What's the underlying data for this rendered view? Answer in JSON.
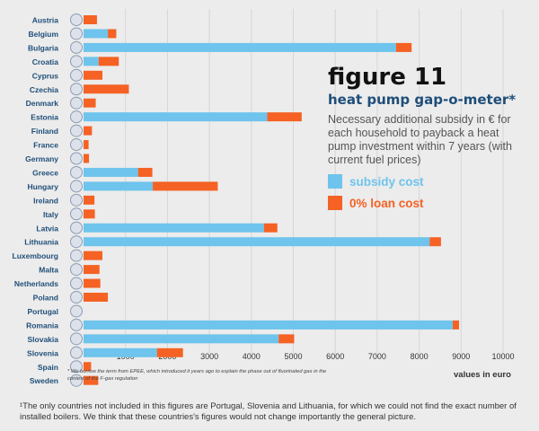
{
  "title": "figure 11",
  "subtitle": "heat pump gap-o-meter*",
  "description": "Necessary additional subsidy in € for each household to payback a heat pump investment within 7 years (with current fuel prices)",
  "legend": [
    {
      "label": "subsidy cost",
      "color": "#6ec4ec"
    },
    {
      "label": "0% loan cost",
      "color": "#f56224"
    }
  ],
  "footnote_small": "* We borrow the term from EPEE, which introduced it years ago to explain the phase out of fluorinated gas in the context of the F-gas regulation",
  "bottom_note": "¹The only countries not included in this figures are Portugal, Slovenia and Lithuania, for which we could not find the exact number of installed boilers. We think that these countries's figures would not change importantly the general picture.",
  "chart_data": {
    "type": "bar",
    "orientation": "horizontal",
    "stacked": true,
    "xlabel": "values in euro",
    "xlim": [
      0,
      10000
    ],
    "xticks": [
      1000,
      2000,
      3000,
      4000,
      5000,
      6000,
      7000,
      8000,
      9000,
      10000
    ],
    "categories": [
      "Austria",
      "Belgium",
      "Bulgaria",
      "Croatia",
      "Cyprus",
      "Czechia",
      "Denmark",
      "Estonia",
      "Finland",
      "France",
      "Germany",
      "Greece",
      "Hungary",
      "Ireland",
      "Italy",
      "Latvia",
      "Lithuania",
      "Luxembourg",
      "Malta",
      "Netherlands",
      "Poland",
      "Portugal",
      "Romania",
      "Slovakia",
      "Slovenia",
      "Spain",
      "Sweden"
    ],
    "series": [
      {
        "name": "subsidy cost",
        "color": "#6ec4ec",
        "values": [
          0,
          580,
          7450,
          360,
          0,
          0,
          0,
          4380,
          0,
          0,
          0,
          1300,
          1650,
          0,
          0,
          4300,
          8250,
          0,
          0,
          0,
          0,
          0,
          8800,
          4650,
          1750,
          0,
          0
        ]
      },
      {
        "name": "0% loan cost",
        "color": "#f56224",
        "values": [
          320,
          200,
          370,
          480,
          450,
          1080,
          290,
          820,
          200,
          120,
          130,
          340,
          1550,
          260,
          270,
          320,
          270,
          450,
          380,
          400,
          580,
          0,
          150,
          370,
          620,
          180,
          350
        ]
      }
    ],
    "grid": true,
    "legend_position": "right"
  }
}
